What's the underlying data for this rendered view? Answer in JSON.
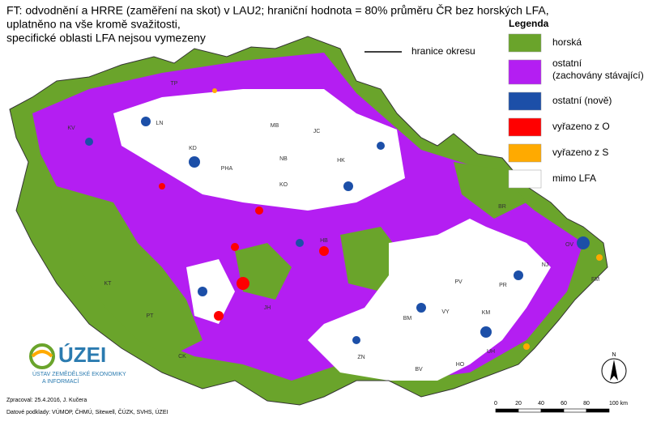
{
  "header": {
    "lines": [
      "FT: odvodnění a HRRE (zaměření na skot) v LAU2; hraniční hodnota = 80% průměru ČR bez horských LFA,",
      "uplatněno na vše kromě svažitosti,",
      "specifické oblasti LFA nejsou vymezeny"
    ]
  },
  "border_legend": "hranice okresu",
  "legend": {
    "title": "Legenda",
    "items": [
      {
        "label": "horská",
        "color": "#6aa42b"
      },
      {
        "label": "ostatní\n(zachovány stávající)",
        "color": "#b41ef2"
      },
      {
        "label": "ostatní (nově)",
        "color": "#1c4fa8"
      },
      {
        "label": "vyřazeno z O",
        "color": "#ff0000"
      },
      {
        "label": "vyřazeno z S",
        "color": "#ffaa00"
      },
      {
        "label": "mimo LFA",
        "color": "#ffffff"
      }
    ]
  },
  "districts": [
    "TP",
    "LN",
    "KV",
    "KD",
    "MB",
    "JC",
    "NB",
    "HK",
    "PHA",
    "KO",
    "BR",
    "OV",
    "NJ",
    "FM",
    "PR",
    "PV",
    "KM",
    "VY",
    "BM",
    "UH",
    "HO",
    "BV",
    "ZN",
    "KT",
    "PT",
    "CK",
    "JH",
    "HB"
  ],
  "logo": {
    "name": "ÚZEI",
    "lines": [
      "ÚSTAV ZEMĚDĚLSKÉ EKONOMIKY",
      "A INFORMACÍ"
    ]
  },
  "footer": {
    "lines": [
      "Zpracoval: 25.4.2016, J. Kučera",
      "Datové podklady: VÚMOP, ČHMÚ, Sitewell, ČÚZK, SVHS, ÚZEI"
    ]
  },
  "scale": {
    "labels": [
      "0",
      "20",
      "40",
      "60",
      "80",
      "100 km"
    ]
  },
  "north": "N"
}
